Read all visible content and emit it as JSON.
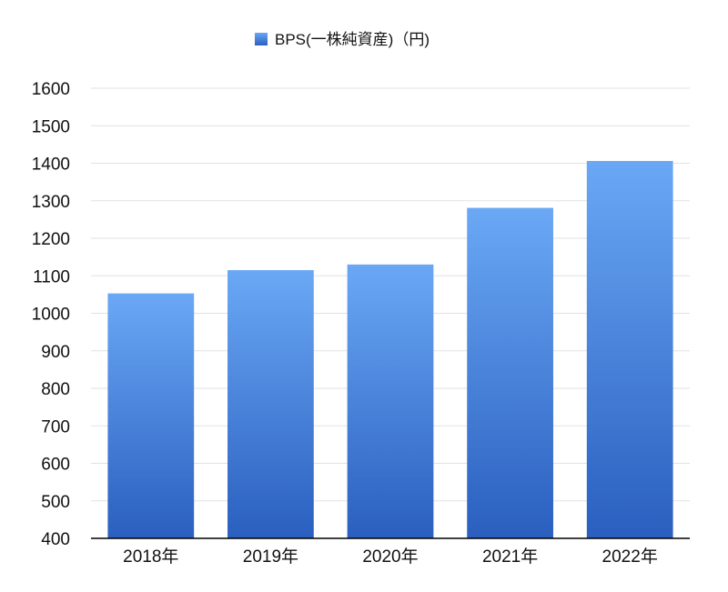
{
  "chart_data": {
    "type": "bar",
    "title": "",
    "xlabel": "",
    "ylabel": "",
    "categories": [
      "2018年",
      "2019年",
      "2020年",
      "2021年",
      "2022年"
    ],
    "series": [
      {
        "name": "BPS(一株純資産)（円)",
        "values": [
          1053,
          1115,
          1130,
          1281,
          1406
        ]
      }
    ],
    "ylim": [
      400,
      1600
    ],
    "yticks": [
      400,
      500,
      600,
      700,
      800,
      900,
      1000,
      1100,
      1200,
      1300,
      1400,
      1500,
      1600
    ],
    "grid": true,
    "legend_position": "top-center",
    "colors": {
      "bar_top": "#6aa8f5",
      "bar_bottom": "#2a5fbf",
      "legend_top": "#6aa8f5",
      "legend_bottom": "#2a5fbf",
      "grid": "#e2e2e2",
      "axis": "#000000"
    }
  }
}
